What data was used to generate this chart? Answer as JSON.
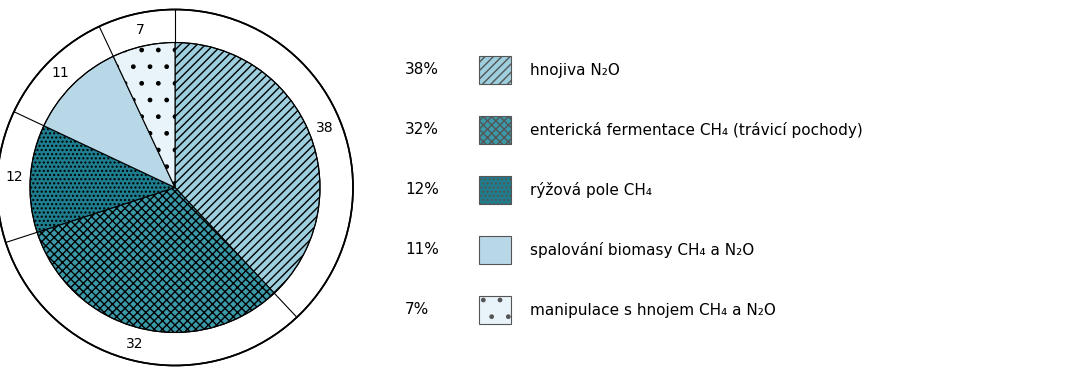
{
  "values": [
    38,
    32,
    12,
    11,
    7
  ],
  "labels": [
    "38",
    "32",
    "12",
    "11",
    "7"
  ],
  "hatch_configs": [
    {
      "hatch": "////",
      "facecolor": "#9ecfdf",
      "hatch_color": "#7ab0c8"
    },
    {
      "hatch": "xxxx",
      "facecolor": "#3a9aaa",
      "hatch_color": "#c5e5ee"
    },
    {
      "hatch": "....",
      "facecolor": "#1e7d8e",
      "hatch_color": "#ffffff"
    },
    {
      "hatch": "",
      "facecolor": "#b8d8e8",
      "hatch_color": "#8ab0c8"
    },
    {
      "hatch": ".",
      "facecolor": "#e8f4fa",
      "hatch_color": "#3a9aaa"
    }
  ],
  "legend_pcts": [
    "38%",
    "32%",
    "12%",
    "11%",
    "7%"
  ],
  "legend_labels": [
    "hnojiva N₂O",
    "enterická fermentace CH₄ (trávicí pochody)",
    "rýžová pole CH₄",
    "spalování biomasy CH₄ a N₂O",
    "manipulace s hnojem CH₄ a N₂O"
  ],
  "background_color": "#ffffff",
  "label_fontsize": 10,
  "legend_fontsize": 11
}
